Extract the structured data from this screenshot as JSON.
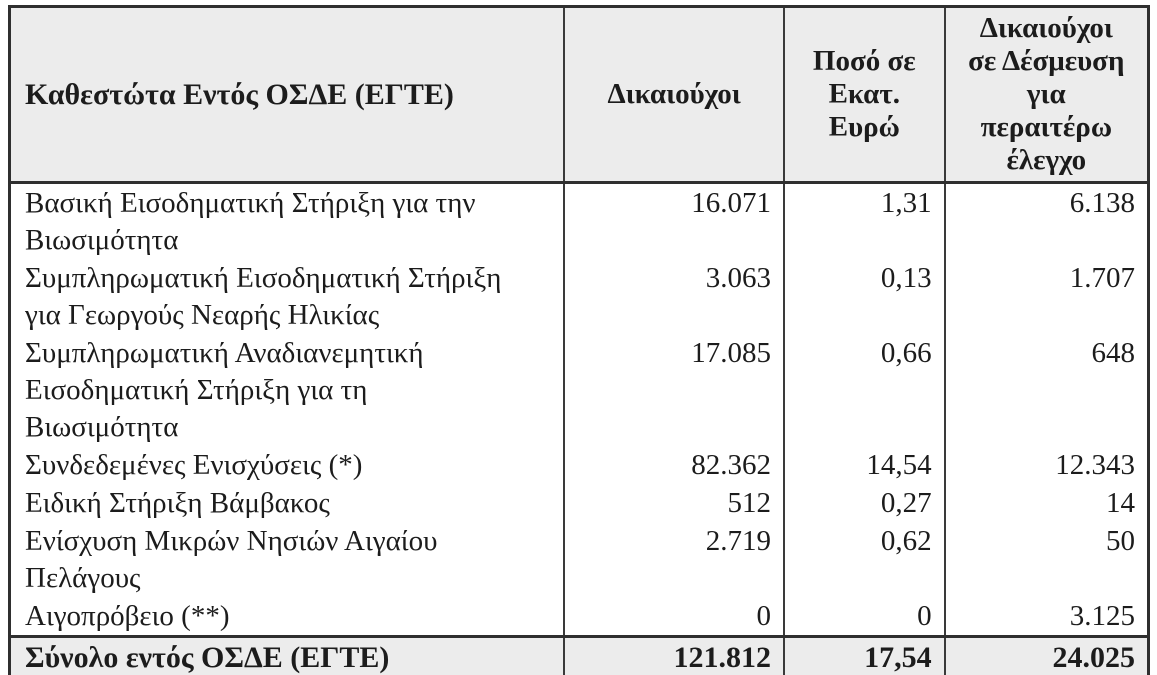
{
  "table": {
    "columns": [
      {
        "id": "scheme",
        "label": "Καθεστώτα Εντός ΟΣΔΕ (ΕΓΤΕ)"
      },
      {
        "id": "beneficiaries",
        "label": "Δικαιούχοι"
      },
      {
        "id": "amount",
        "label": "Ποσό σε\nΕκατ.\nΕυρώ"
      },
      {
        "id": "committed",
        "label": "Δικαιούχοι\nσε Δέσμευση\nγια\nπεραιτέρω\nέλεγχο"
      }
    ],
    "rows": [
      {
        "label": "Βασική Εισοδηματική Στήριξη για την\nΒιωσιμότητα",
        "beneficiaries": "16.071",
        "amount": "1,31",
        "committed": "6.138"
      },
      {
        "label": "Συμπληρωματική Εισοδηματική Στήριξη\nγια Γεωργούς Νεαρής Ηλικίας",
        "beneficiaries": "3.063",
        "amount": "0,13",
        "committed": "1.707"
      },
      {
        "label": "Συμπληρωματική Αναδιανεμητική\nΕισοδηματική Στήριξη για τη\nΒιωσιμότητα",
        "beneficiaries": "17.085",
        "amount": "0,66",
        "committed": "648"
      },
      {
        "label": "Συνδεδεμένες Ενισχύσεις (*)",
        "beneficiaries": "82.362",
        "amount": "14,54",
        "committed": "12.343"
      },
      {
        "label": "Ειδική Στήριξη Βάμβακος",
        "beneficiaries": "512",
        "amount": "0,27",
        "committed": "14"
      },
      {
        "label": "Ενίσχυση Μικρών Νησιών Αιγαίου\nΠελάγους",
        "beneficiaries": "2.719",
        "amount": "0,62",
        "committed": "50"
      },
      {
        "label": "Αιγοπρόβειο (**)",
        "beneficiaries": "0",
        "amount": "0",
        "committed": "3.125"
      }
    ],
    "total": {
      "label": "Σύνολο εντός ΟΣΔΕ (ΕΓΤΕ)",
      "beneficiaries": "121.812",
      "amount": "17,54",
      "committed": "24.025"
    },
    "colors": {
      "header_bg": "#ececec",
      "total_bg": "#ececec",
      "border": "#2f2f2f",
      "text": "#1c1c1c"
    }
  }
}
